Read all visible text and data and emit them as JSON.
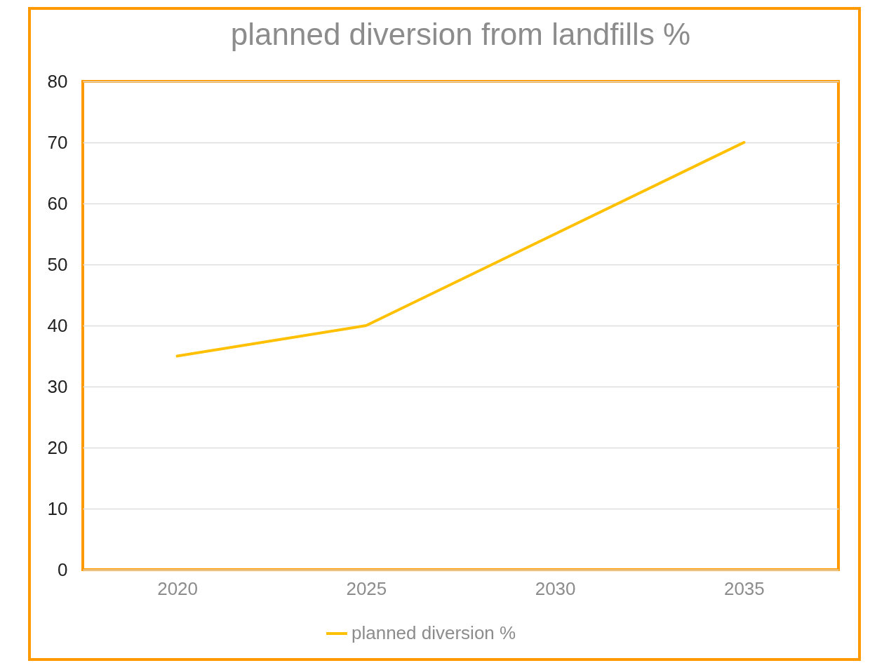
{
  "chart_data": {
    "type": "line",
    "title": "planned diversion from landfills %",
    "categories": [
      "2020",
      "2025",
      "2030",
      "2035"
    ],
    "series": [
      {
        "name": "planned diversion %",
        "color": "#ffc000",
        "values": [
          35,
          40,
          55,
          70
        ]
      }
    ],
    "ylim": [
      0,
      80
    ],
    "yticks": [
      0,
      10,
      20,
      30,
      40,
      50,
      60,
      70,
      80
    ],
    "grid": "y",
    "legend": "bottom"
  }
}
